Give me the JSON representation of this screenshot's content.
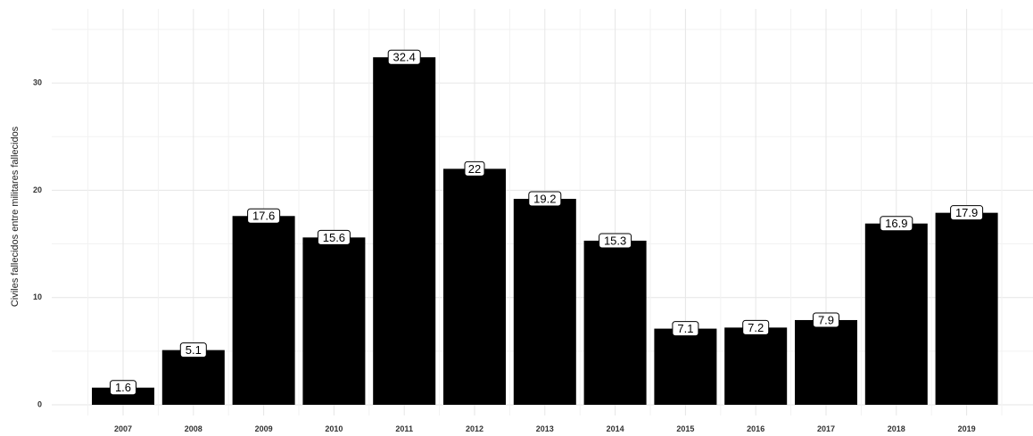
{
  "chart_data": {
    "type": "bar",
    "categories": [
      "2007",
      "2008",
      "2009",
      "2010",
      "2011",
      "2012",
      "2013",
      "2014",
      "2015",
      "2016",
      "2017",
      "2018",
      "2019"
    ],
    "values": [
      1.6,
      5.1,
      17.6,
      15.6,
      32.4,
      22,
      19.2,
      15.3,
      7.1,
      7.2,
      7.9,
      16.9,
      17.9
    ],
    "data_labels": [
      "1.6",
      "5.1",
      "17.6",
      "15.6",
      "32.4",
      "22",
      "19.2",
      "15.3",
      "7.1",
      "7.2",
      "7.9",
      "16.9",
      "17.9"
    ],
    "title": "",
    "xlabel": "",
    "ylabel": "Civiles fallecidos entre militares fallecidos",
    "ylim": [
      0,
      35
    ],
    "yticks": [
      0,
      10,
      20,
      30
    ],
    "ytick_labels": [
      "0",
      "10",
      "20",
      "30"
    ],
    "grid": true,
    "bar_color": "#000000",
    "legend": "none"
  }
}
